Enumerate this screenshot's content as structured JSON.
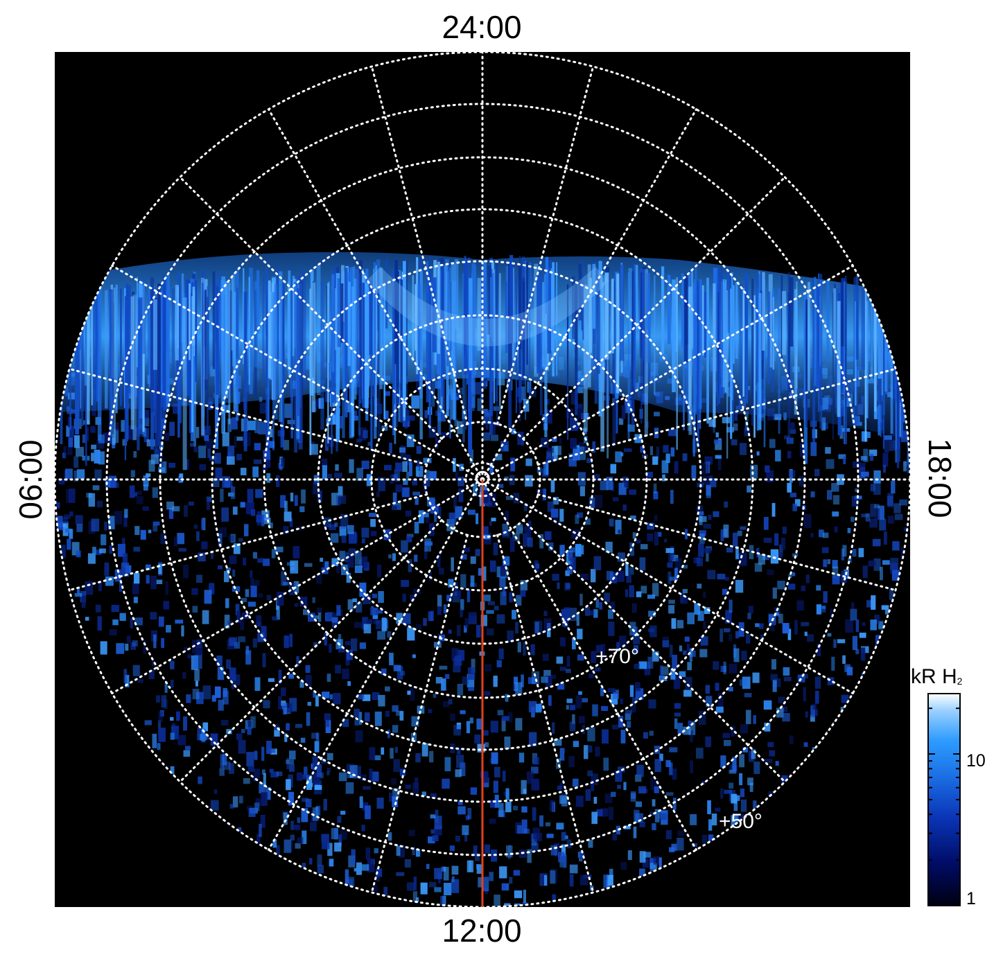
{
  "labels": {
    "top": "24:00",
    "bottom": "12:00",
    "left": "06:00",
    "right": "18:00",
    "lat_70": "+70°",
    "lat_50": "+50°"
  },
  "colorbar": {
    "title_main": "kR H",
    "title_sub": "2",
    "tick_high": "10",
    "tick_low": "1",
    "scale": "log",
    "range": [
      1,
      25
    ],
    "colors": [
      "#000010",
      "#000c66",
      "#0a36b8",
      "#1c72e6",
      "#2e9cff",
      "#9ad0ff",
      "#ffffff"
    ]
  },
  "map": {
    "background": "#000000",
    "grid_color": "#ffffff",
    "meridian_color": "#e0401e",
    "auroral_color": "#2e8cf0",
    "noise_color": "#1a5fd6"
  }
}
